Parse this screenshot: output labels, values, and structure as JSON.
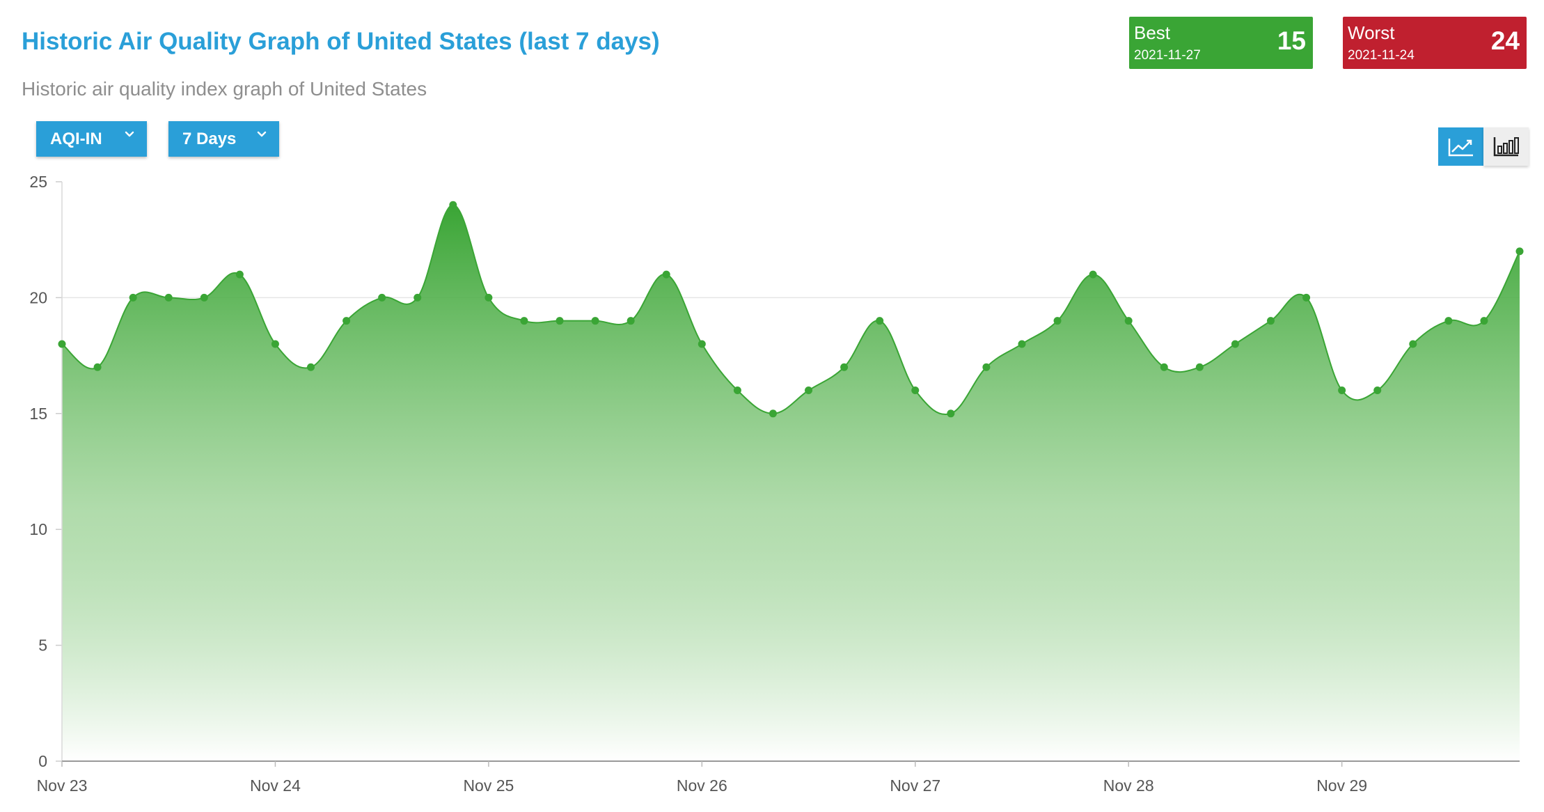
{
  "header": {
    "title": "Historic Air Quality Graph of United States (last 7 days)",
    "subtitle": "Historic air quality index graph of United States"
  },
  "stats": {
    "best": {
      "label": "Best",
      "date": "2021-11-27",
      "value": "15",
      "color": "#3aa535"
    },
    "worst": {
      "label": "Worst",
      "date": "2021-11-24",
      "value": "24",
      "color": "#c0202f"
    }
  },
  "controls": {
    "metric": {
      "label": "AQI-IN",
      "icon": "chevron-down-icon"
    },
    "range": {
      "label": "7 Days",
      "icon": "chevron-down-icon"
    },
    "view_toggle": [
      {
        "name": "line-chart",
        "icon": "line-chart-icon",
        "active": true
      },
      {
        "name": "bar-chart",
        "icon": "bar-chart-icon",
        "active": false
      }
    ],
    "accent_color": "#2a9fd8"
  },
  "chart_data": {
    "type": "area",
    "title": "",
    "xlabel": "",
    "ylabel": "",
    "ylim": [
      0,
      25
    ],
    "yticks": [
      "0",
      "5",
      "10",
      "15",
      "20",
      "25"
    ],
    "xticks": [
      "Nov 23",
      "Nov 24",
      "Nov 25",
      "Nov 26",
      "Nov 27",
      "Nov 28",
      "Nov 29"
    ],
    "grid": "horizontal line at 20",
    "legend": "none",
    "series_color": "#3aa535",
    "series": [
      {
        "values": [
          18,
          17,
          20,
          20,
          20,
          21,
          18,
          17,
          19,
          20,
          20,
          24,
          20,
          19,
          19,
          19,
          19,
          21,
          18,
          16,
          15,
          16,
          17,
          19,
          16,
          15,
          17,
          18,
          19,
          21,
          19,
          17,
          17,
          18,
          19,
          20,
          16,
          16,
          18,
          19,
          19,
          22
        ]
      }
    ]
  }
}
